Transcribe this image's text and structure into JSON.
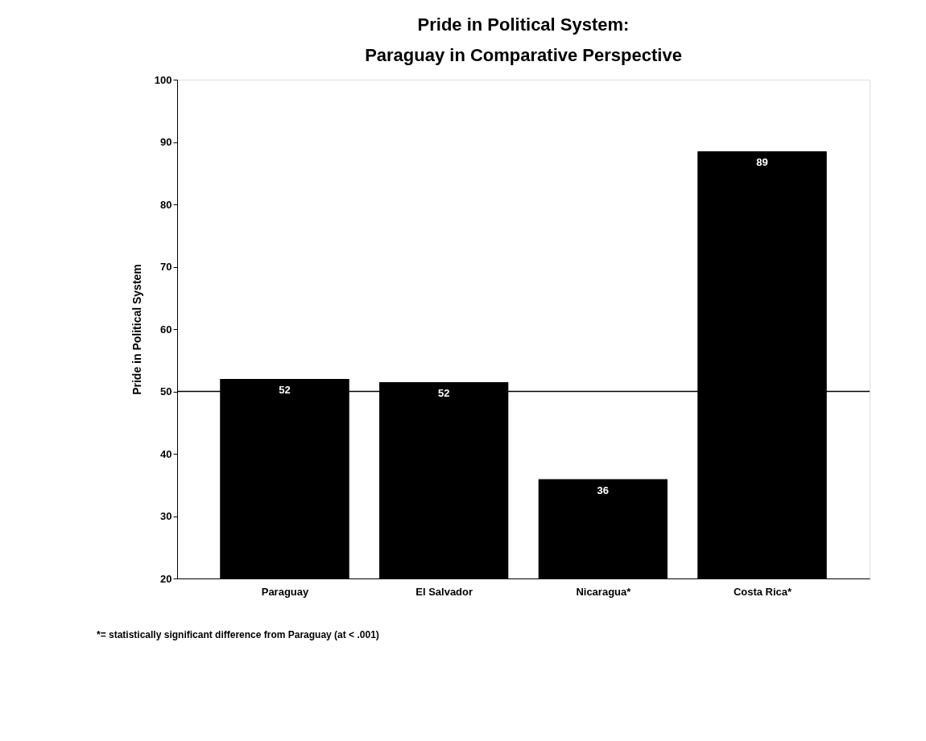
{
  "chart_data": {
    "type": "bar",
    "title": "Pride in Political System:\nParaguay in Comparative Perspective",
    "ylabel": "Pride in Political System",
    "categories": [
      "Paraguay",
      "El Salvador",
      "Nicaragua*",
      "Costa Rica*"
    ],
    "values": [
      52.0,
      51.5,
      35.9,
      88.5
    ],
    "value_labels": [
      "52",
      "52",
      "36",
      "89"
    ],
    "color": "#000000",
    "ylim": [
      20,
      100
    ],
    "yticks": [
      20,
      30,
      40,
      50,
      60,
      70,
      80,
      90,
      100
    ],
    "grid": false,
    "ref_lines": [
      {
        "axis": "y",
        "value": 50,
        "color": "#000000"
      }
    ],
    "annotations": [
      "*= statistically significant difference from Paraguay (at < .001)"
    ]
  }
}
